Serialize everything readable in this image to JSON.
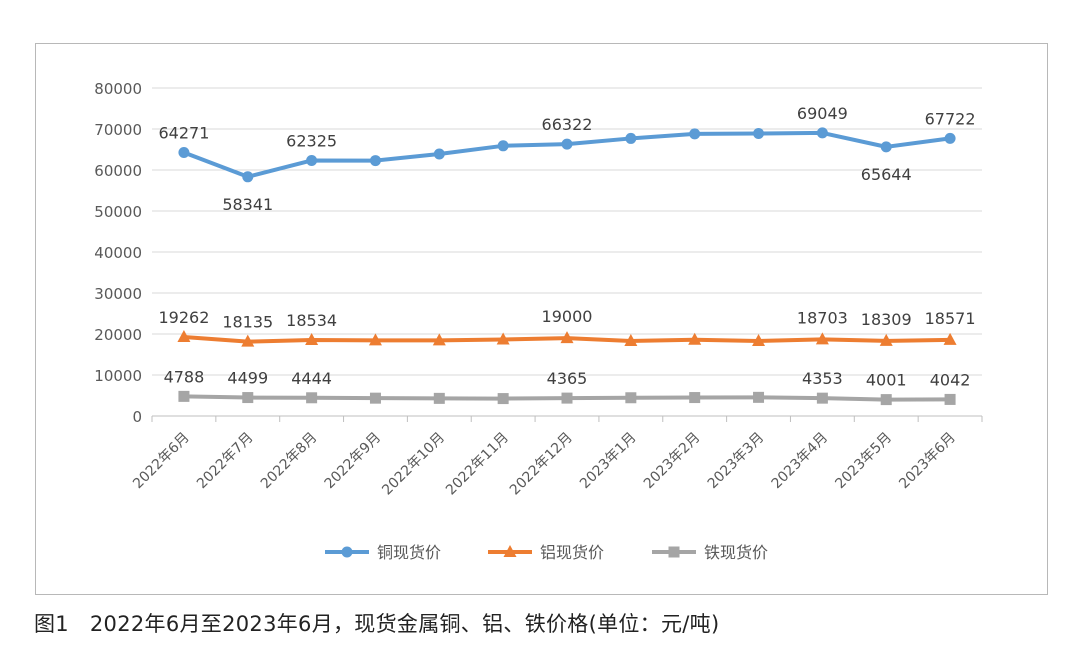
{
  "caption": "图1   2022年6月至2023年6月，现货金属铜、铝、铁价格(单位：元/吨)",
  "chart_data": {
    "type": "line",
    "categories": [
      "2022年6月",
      "2022年7月",
      "2022年8月",
      "2022年9月",
      "2022年10月",
      "2022年11月",
      "2022年12月",
      "2023年1月",
      "2023年2月",
      "2023年3月",
      "2023年4月",
      "2023年5月",
      "2023年6月"
    ],
    "ylim": [
      0,
      80000
    ],
    "yticks": [
      0,
      10000,
      20000,
      30000,
      40000,
      50000,
      60000,
      70000,
      80000
    ],
    "grid": true,
    "legend_position": "bottom",
    "series": [
      {
        "name": "铜现货价",
        "color": "#5b9bd5",
        "marker": "circle",
        "values": [
          64271,
          58341,
          62325,
          62300,
          63900,
          65900,
          66322,
          67700,
          68800,
          68900,
          69049,
          65644,
          67722
        ],
        "labels": [
          "64271",
          "58341",
          "62325",
          null,
          null,
          null,
          "66322",
          null,
          null,
          null,
          "69049",
          "65644",
          "67722"
        ]
      },
      {
        "name": "铝现货价",
        "color": "#ed7d31",
        "marker": "triangle",
        "values": [
          19262,
          18135,
          18534,
          18450,
          18450,
          18650,
          19000,
          18300,
          18600,
          18300,
          18703,
          18309,
          18571
        ],
        "labels": [
          "19262",
          "18135",
          "18534",
          null,
          null,
          null,
          "19000",
          null,
          null,
          null,
          "18703",
          "18309",
          "18571"
        ]
      },
      {
        "name": "铁现货价",
        "color": "#a5a5a5",
        "marker": "square",
        "values": [
          4788,
          4499,
          4444,
          4350,
          4300,
          4250,
          4365,
          4450,
          4500,
          4550,
          4353,
          4001,
          4042
        ],
        "labels": [
          "4788",
          "4499",
          "4444",
          null,
          null,
          null,
          "4365",
          null,
          null,
          null,
          "4353",
          "4001",
          "4042"
        ]
      }
    ]
  }
}
